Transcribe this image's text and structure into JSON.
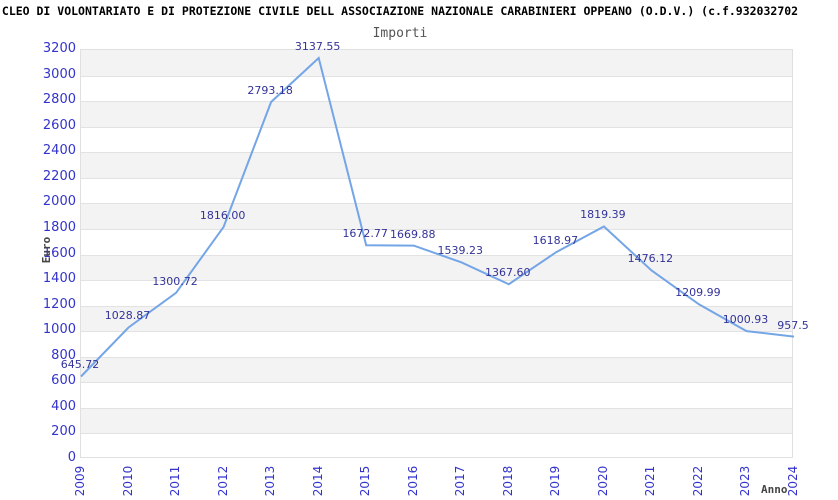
{
  "header": {
    "title": "CLEO DI VOLONTARIATO E DI PROTEZIONE CIVILE DELL ASSOCIAZIONE NAZIONALE CARABINIERI OPPEANO (O.D.V.) (c.f.932032702",
    "subtitle": "Importi"
  },
  "chart_data": {
    "type": "line",
    "title": "Importi",
    "xlabel": "Anno",
    "ylabel": "Euro",
    "categories": [
      "2009",
      "2010",
      "2011",
      "2012",
      "2013",
      "2014",
      "2015",
      "2016",
      "2017",
      "2018",
      "2019",
      "2020",
      "2021",
      "2022",
      "2023",
      "2024"
    ],
    "values": [
      645.72,
      1028.87,
      1300.72,
      1816.0,
      2793.18,
      3137.55,
      1672.77,
      1669.88,
      1539.23,
      1367.6,
      1618.97,
      1819.39,
      1476.12,
      1209.99,
      1000.93,
      957.5
    ],
    "point_labels": [
      "645.72",
      "1028.87",
      "1300.72",
      "1816.00",
      "2793.18",
      "3137.55",
      "1672.77",
      "1669.88",
      "1539.23",
      "1367.60",
      "1618.97",
      "1819.39",
      "1476.12",
      "1209.99",
      "1000.93",
      "957.5"
    ],
    "ylim": [
      0,
      3200
    ],
    "ytick_step": 200,
    "grid": true,
    "legend": false,
    "band_fill": "alternating horizontal stripes per 200",
    "colors": {
      "line": "#74a5e6",
      "tick_label": "#3333cc",
      "point_label": "#333399",
      "band": "#f3f3f3",
      "grid": "#e2e2e2",
      "axis_title": "#444444",
      "subtitle": "#555555",
      "title": "#000000"
    }
  }
}
